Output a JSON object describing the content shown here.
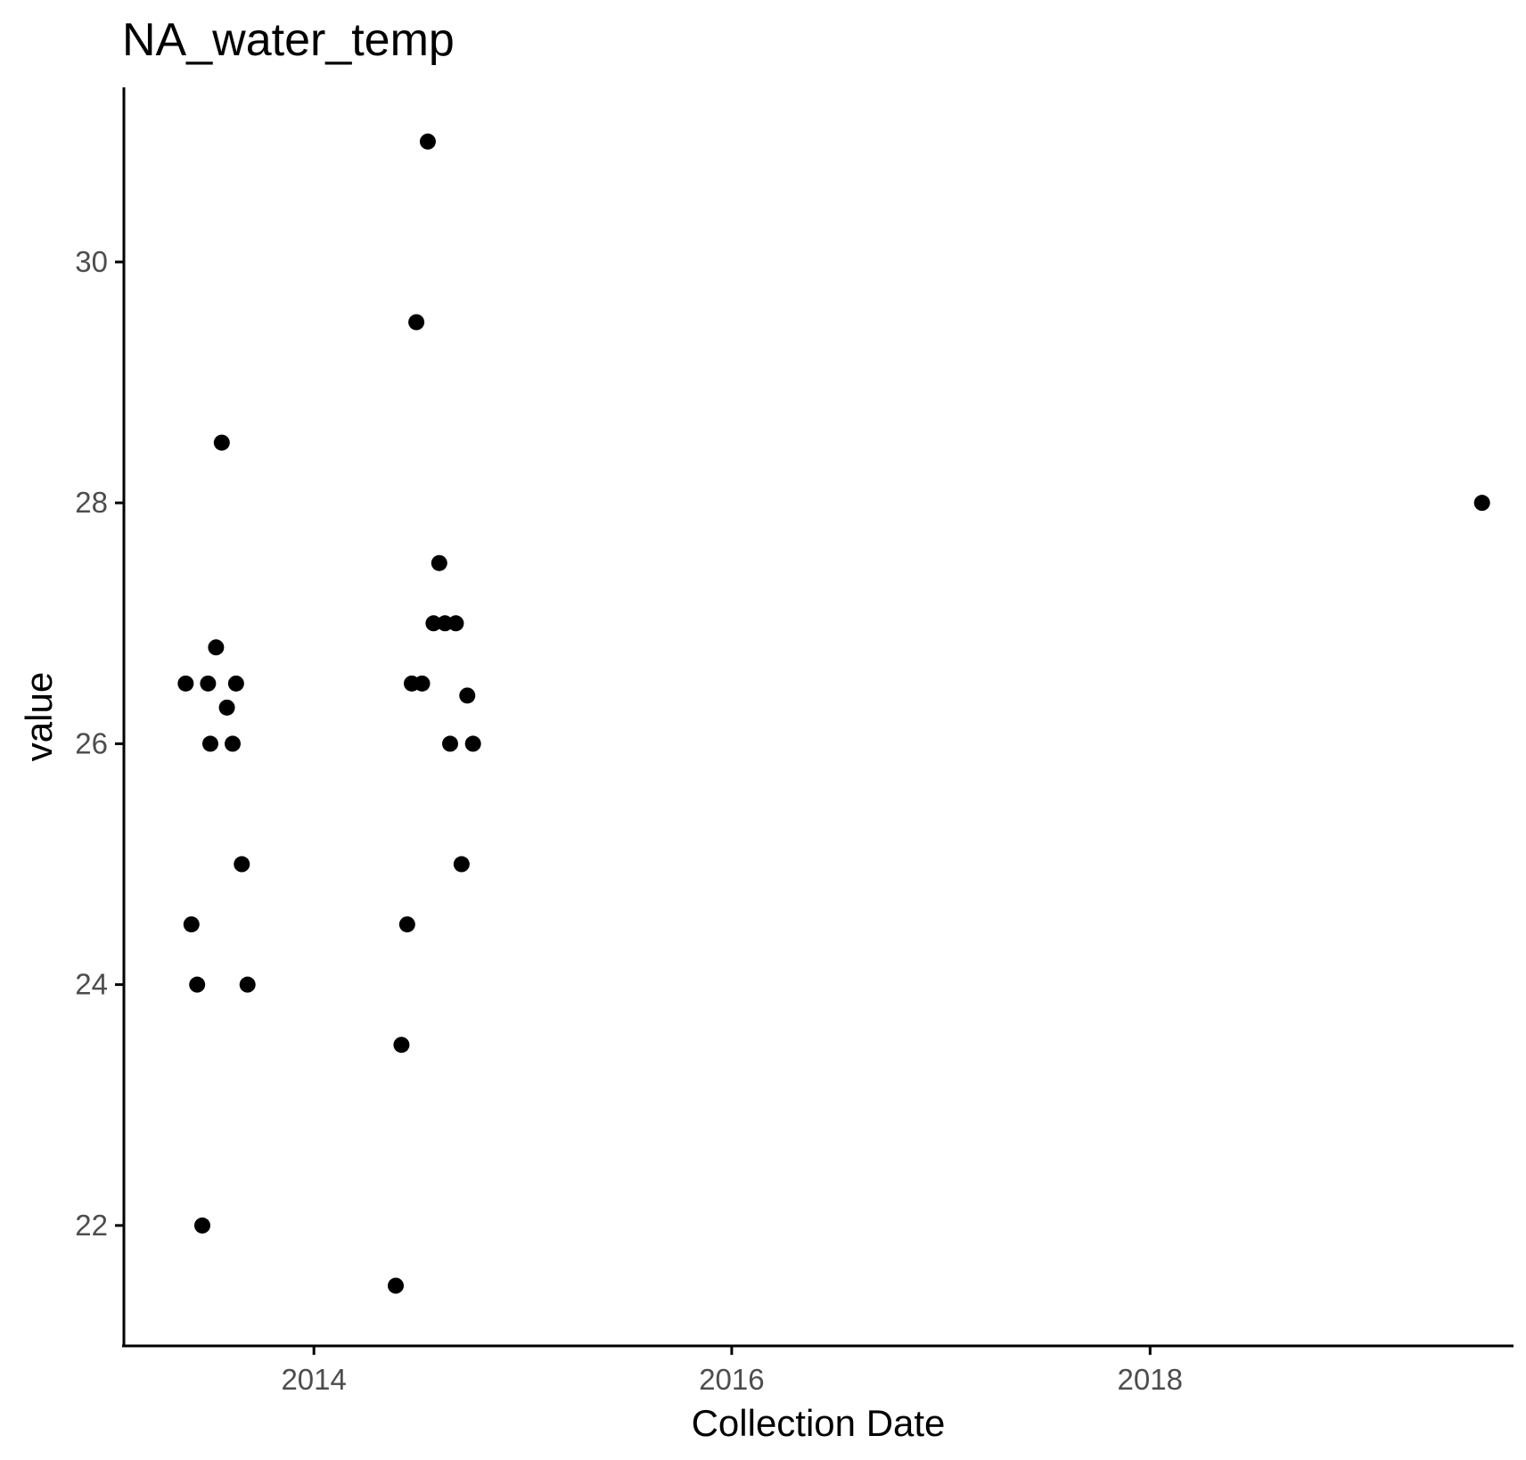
{
  "chart_data": {
    "type": "scatter",
    "title": "NA_water_temp",
    "xlabel": "Collection Date",
    "ylabel": "value",
    "x_scale": "date",
    "xlim": [
      "2013-02-03",
      "2019-09-28"
    ],
    "ylim": [
      21.0,
      31.45
    ],
    "x_ticks": [
      {
        "value": "2014-01-01",
        "label": "2014"
      },
      {
        "value": "2016-01-01",
        "label": "2016"
      },
      {
        "value": "2018-01-01",
        "label": "2018"
      }
    ],
    "y_ticks": [
      {
        "value": 22,
        "label": "22"
      },
      {
        "value": 24,
        "label": "24"
      },
      {
        "value": 26,
        "label": "26"
      },
      {
        "value": 28,
        "label": "28"
      },
      {
        "value": 30,
        "label": "30"
      }
    ],
    "grid": false,
    "legend": "none",
    "colors": {
      "points": "#000000",
      "axis": "#000000",
      "tick_labels": "#4d4d4d"
    },
    "points": [
      {
        "x": "2013-05-22",
        "y": 26.5
      },
      {
        "x": "2013-06-01",
        "y": 24.5
      },
      {
        "x": "2013-06-11",
        "y": 24.0
      },
      {
        "x": "2013-06-20",
        "y": 22.0
      },
      {
        "x": "2013-06-30",
        "y": 26.5
      },
      {
        "x": "2013-07-04",
        "y": 26.0
      },
      {
        "x": "2013-07-14",
        "y": 26.8
      },
      {
        "x": "2013-07-24",
        "y": 28.5
      },
      {
        "x": "2013-08-02",
        "y": 26.3
      },
      {
        "x": "2013-08-12",
        "y": 26.0
      },
      {
        "x": "2013-08-18",
        "y": 26.5
      },
      {
        "x": "2013-08-28",
        "y": 25.0
      },
      {
        "x": "2013-09-07",
        "y": 24.0
      },
      {
        "x": "2014-05-24",
        "y": 21.5
      },
      {
        "x": "2014-06-03",
        "y": 23.5
      },
      {
        "x": "2014-06-13",
        "y": 24.5
      },
      {
        "x": "2014-06-21",
        "y": 26.5
      },
      {
        "x": "2014-06-29",
        "y": 29.5
      },
      {
        "x": "2014-07-09",
        "y": 26.5
      },
      {
        "x": "2014-07-19",
        "y": 31.0
      },
      {
        "x": "2014-07-29",
        "y": 27.0
      },
      {
        "x": "2014-08-08",
        "y": 27.5
      },
      {
        "x": "2014-08-18",
        "y": 27.0
      },
      {
        "x": "2014-08-27",
        "y": 26.0
      },
      {
        "x": "2014-09-06",
        "y": 27.0
      },
      {
        "x": "2014-09-16",
        "y": 25.0
      },
      {
        "x": "2014-09-26",
        "y": 26.4
      },
      {
        "x": "2014-10-06",
        "y": 26.0
      },
      {
        "x": "2019-08-04",
        "y": 28.0
      }
    ]
  }
}
